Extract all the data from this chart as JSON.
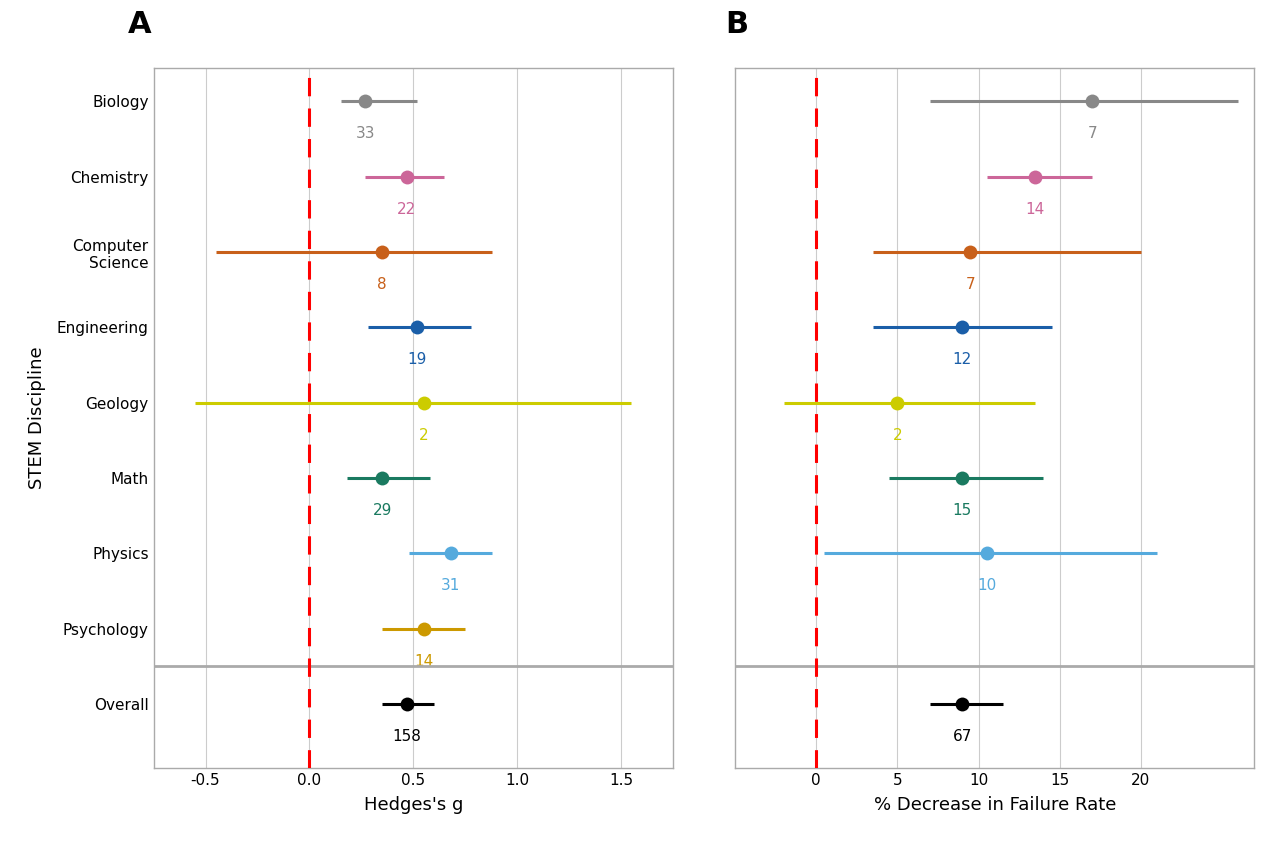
{
  "disciplines": [
    "Biology",
    "Chemistry",
    "Computer\nScience",
    "Engineering",
    "Geology",
    "Math",
    "Physics",
    "Psychology",
    "Overall"
  ],
  "colors": [
    "#888888",
    "#cc6699",
    "#c8601a",
    "#1a5ea8",
    "#cccc00",
    "#1a7a60",
    "#55aadd",
    "#cc9900",
    "#000000"
  ],
  "panel_A": {
    "centers": [
      0.27,
      0.47,
      0.35,
      0.52,
      0.55,
      0.35,
      0.68,
      0.55,
      0.47
    ],
    "ci_low": [
      0.15,
      0.27,
      -0.45,
      0.28,
      -0.55,
      0.18,
      0.48,
      0.35,
      0.35
    ],
    "ci_high": [
      0.52,
      0.65,
      0.88,
      0.78,
      1.55,
      0.58,
      0.88,
      0.75,
      0.6
    ],
    "labels": [
      "33",
      "22",
      "8",
      "19",
      "2",
      "29",
      "31",
      "14",
      "158"
    ],
    "xlim": [
      -0.75,
      1.75
    ],
    "xticks": [
      -0.5,
      0.0,
      0.5,
      1.0,
      1.5
    ],
    "xticklabels": [
      "-0.5",
      "0.0",
      "0.5",
      "1.0",
      "1.5"
    ],
    "xlabel": "Hedges's g",
    "vline": 0.0
  },
  "panel_B": {
    "centers": [
      17.0,
      13.5,
      9.5,
      9.0,
      5.0,
      9.0,
      10.5,
      null,
      9.0
    ],
    "ci_low": [
      7.0,
      10.5,
      3.5,
      3.5,
      -2.0,
      4.5,
      0.5,
      null,
      7.0
    ],
    "ci_high": [
      26.0,
      17.0,
      20.0,
      14.5,
      13.5,
      14.0,
      21.0,
      null,
      11.5
    ],
    "labels": [
      "7",
      "14",
      "7",
      "12",
      "2",
      "15",
      "10",
      "",
      "67"
    ],
    "xlim": [
      -5,
      27
    ],
    "xticks": [
      0,
      5,
      10,
      15,
      20
    ],
    "xticklabels": [
      "0",
      "5",
      "10",
      "15",
      "20"
    ],
    "xlabel": "% Decrease in Failure Rate",
    "vline": 0.0
  },
  "ylabel": "STEM Discipline",
  "background": "#ffffff",
  "panel_labels": [
    "A",
    "B"
  ]
}
